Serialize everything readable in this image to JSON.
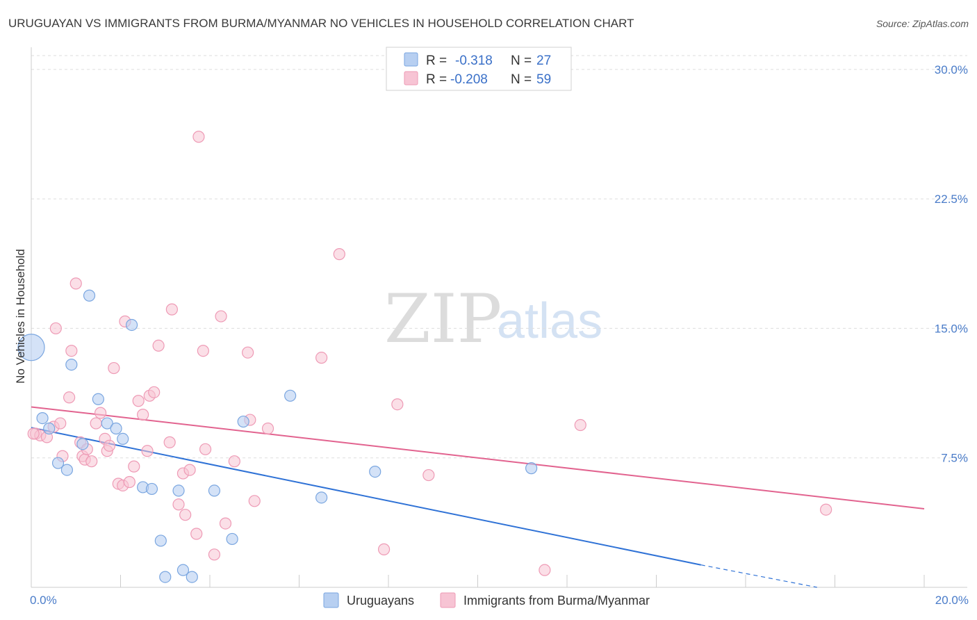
{
  "title": "URUGUAYAN VS IMMIGRANTS FROM BURMA/MYANMAR NO VEHICLES IN HOUSEHOLD CORRELATION CHART",
  "source": "Source: ZipAtlas.com",
  "watermark": {
    "zip": "ZIP",
    "atlas": "atlas"
  },
  "legend": {
    "r_label": "R =",
    "n_label": "N =",
    "rows": [
      {
        "r": "-0.318",
        "n": "27"
      },
      {
        "r": "-0.208",
        "n": "59"
      }
    ]
  },
  "bottom_legend": [
    "Uruguayans",
    "Immigrants from Burma/Myanmar"
  ],
  "colors": {
    "blue_fill": "#b7cff1",
    "blue_stroke": "#7aa6e0",
    "blue_line": "#2f72d6",
    "pink_fill": "#f7c4d4",
    "pink_stroke": "#ee9ab5",
    "pink_line": "#e2638f"
  },
  "chart_data": {
    "type": "scatter",
    "title": "URUGUAYAN VS IMMIGRANTS FROM BURMA/MYANMAR NO VEHICLES IN HOUSEHOLD CORRELATION CHART",
    "xlabel": "",
    "ylabel": "No Vehicles in Household",
    "xlim": [
      0,
      20
    ],
    "ylim": [
      0,
      30.8
    ],
    "x_tick_labels": [
      "0.0%",
      "20.0%"
    ],
    "y_ticks": [
      7.5,
      15.0,
      22.5,
      30.0
    ],
    "y_tick_labels": [
      "7.5%",
      "15.0%",
      "22.5%",
      "30.0%"
    ],
    "series": [
      {
        "name": "Uruguayans",
        "points": [
          [
            0.0,
            13.9
          ],
          [
            0.25,
            9.8
          ],
          [
            0.4,
            9.2
          ],
          [
            0.6,
            7.2
          ],
          [
            0.8,
            6.8
          ],
          [
            1.15,
            8.3
          ],
          [
            1.3,
            16.9
          ],
          [
            0.9,
            12.9
          ],
          [
            1.5,
            10.9
          ],
          [
            1.7,
            9.5
          ],
          [
            1.9,
            9.2
          ],
          [
            2.05,
            8.6
          ],
          [
            2.25,
            15.2
          ],
          [
            2.5,
            5.8
          ],
          [
            2.7,
            5.7
          ],
          [
            2.9,
            2.7
          ],
          [
            3.0,
            0.6
          ],
          [
            3.3,
            5.6
          ],
          [
            3.4,
            1.0
          ],
          [
            3.6,
            0.6
          ],
          [
            4.1,
            5.6
          ],
          [
            4.5,
            2.8
          ],
          [
            4.75,
            9.6
          ],
          [
            5.8,
            11.1
          ],
          [
            6.5,
            5.2
          ],
          [
            7.7,
            6.7
          ],
          [
            11.2,
            6.9
          ]
        ],
        "trend": {
          "x0": 0,
          "y0": 9.25,
          "x1": 15.0,
          "y1": 1.3,
          "dash_x1": 17.6,
          "dash_y1": 0.0
        }
      },
      {
        "name": "Immigrants from Burma/Myanmar",
        "points": [
          [
            0.1,
            8.9
          ],
          [
            0.2,
            8.8
          ],
          [
            0.35,
            8.7
          ],
          [
            0.5,
            9.3
          ],
          [
            0.55,
            15.0
          ],
          [
            0.65,
            9.5
          ],
          [
            0.7,
            7.6
          ],
          [
            0.85,
            11.0
          ],
          [
            0.9,
            13.7
          ],
          [
            1.0,
            17.6
          ],
          [
            1.1,
            8.4
          ],
          [
            1.15,
            7.6
          ],
          [
            1.2,
            7.4
          ],
          [
            1.25,
            8.0
          ],
          [
            1.35,
            7.3
          ],
          [
            1.45,
            9.5
          ],
          [
            1.55,
            10.1
          ],
          [
            1.65,
            8.6
          ],
          [
            1.7,
            7.9
          ],
          [
            1.75,
            8.2
          ],
          [
            1.85,
            12.7
          ],
          [
            1.95,
            6.0
          ],
          [
            2.05,
            5.9
          ],
          [
            2.1,
            15.4
          ],
          [
            2.2,
            6.1
          ],
          [
            2.3,
            7.0
          ],
          [
            2.4,
            10.8
          ],
          [
            2.5,
            10.0
          ],
          [
            2.6,
            7.9
          ],
          [
            2.65,
            11.1
          ],
          [
            2.75,
            11.3
          ],
          [
            2.85,
            14.0
          ],
          [
            3.1,
            8.4
          ],
          [
            3.15,
            16.1
          ],
          [
            3.3,
            4.8
          ],
          [
            3.4,
            6.6
          ],
          [
            3.45,
            4.2
          ],
          [
            3.55,
            6.8
          ],
          [
            3.7,
            3.1
          ],
          [
            3.75,
            26.1
          ],
          [
            3.85,
            13.7
          ],
          [
            3.9,
            8.0
          ],
          [
            4.1,
            1.9
          ],
          [
            4.25,
            15.7
          ],
          [
            4.35,
            3.7
          ],
          [
            4.55,
            7.3
          ],
          [
            4.85,
            13.6
          ],
          [
            4.9,
            9.7
          ],
          [
            5.0,
            5.0
          ],
          [
            5.3,
            9.2
          ],
          [
            6.5,
            13.3
          ],
          [
            6.9,
            19.3
          ],
          [
            7.9,
            2.2
          ],
          [
            8.2,
            10.6
          ],
          [
            8.9,
            6.5
          ],
          [
            11.5,
            1.0
          ],
          [
            12.3,
            9.4
          ],
          [
            17.8,
            4.5
          ],
          [
            0.05,
            8.9
          ]
        ],
        "trend": {
          "x0": 0,
          "y0": 10.45,
          "x1": 20.0,
          "y1": 4.55
        }
      }
    ]
  }
}
